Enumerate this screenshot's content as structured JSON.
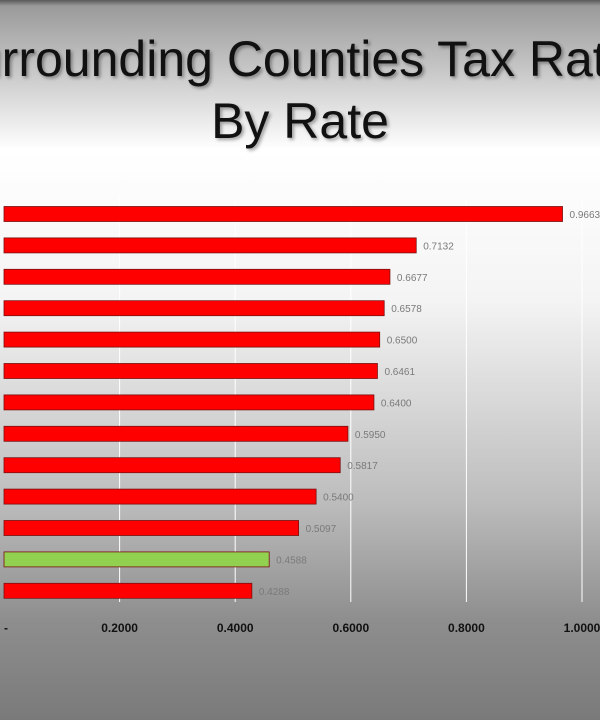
{
  "title_line1": "Surrounding Counties Tax Rates",
  "title_line2": "By Rate",
  "colors": {
    "bar_default": "#ff0000",
    "bar_highlight": "#92d050",
    "grid": "#ffffff"
  },
  "chart_data": {
    "type": "bar",
    "orientation": "horizontal",
    "title": "Surrounding Counties Tax Rates By Rate",
    "xlim": [
      0,
      1.0
    ],
    "grid": true,
    "x_tick_labels": [
      "-",
      "0.2000",
      "0.4000",
      "0.6000",
      "0.8000",
      "1.0000"
    ],
    "values": [
      0.9663,
      0.7132,
      0.6677,
      0.6578,
      0.65,
      0.6461,
      0.64,
      0.595,
      0.5817,
      0.54,
      0.5097,
      0.4588,
      0.4288
    ],
    "value_labels": [
      "0.9663",
      "0.7132",
      "0.6677",
      "0.6578",
      "0.6500",
      "0.6461",
      "0.6400",
      "0.5950",
      "0.5817",
      "0.5400",
      "0.5097",
      "0.4588",
      "0.4288"
    ],
    "highlighted_index": 11
  }
}
